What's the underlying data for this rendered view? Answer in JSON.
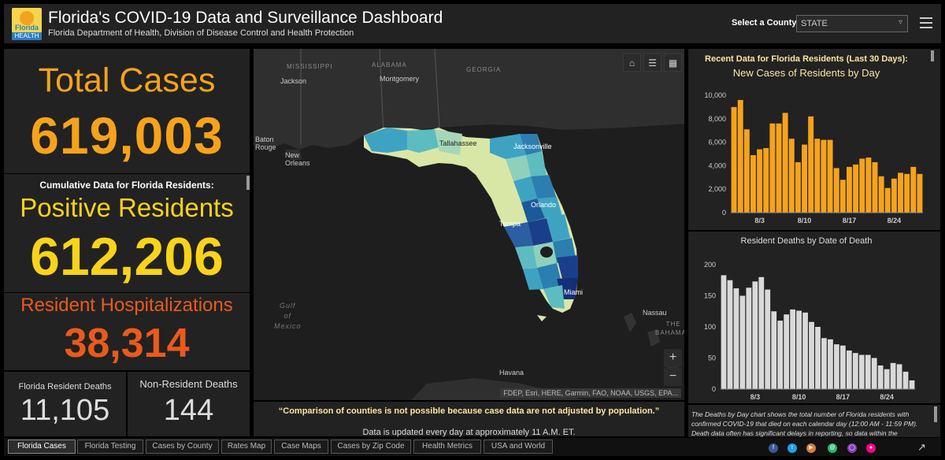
{
  "header": {
    "title": "Florida's COVID-19 Data and Surveillance Dashboard",
    "subtitle": "Florida Department of Health, Division of Disease Control and Health Protection",
    "logo_top": "Florida",
    "logo_bottom": "HEALTH",
    "county_label": "Select a County",
    "county_value": "STATE"
  },
  "stats": {
    "total_cases_label": "Total Cases",
    "total_cases_value": "619,003",
    "cumulative_label": "Cumulative Data for Florida Residents:",
    "positive_label": "Positive Residents",
    "positive_value": "612,206",
    "hosp_label": "Resident Hospitalizations",
    "hosp_value": "38,314",
    "resident_deaths_label": "Florida Resident Deaths",
    "resident_deaths_value": "11,105",
    "nonresident_deaths_label": "Non-Resident Deaths",
    "nonresident_deaths_value": "144"
  },
  "map": {
    "labels": {
      "mississippi": "MISSISSIPPI",
      "alabama": "ALABAMA",
      "georgia": "GEORGIA",
      "jackson": "Jackson",
      "montgomery": "Montgomery",
      "baton_rouge": "Baton\nRouge",
      "new_orleans": "New\nOrleans",
      "tallahassee": "Tallahassee",
      "jacksonville": "Jacksonville",
      "orlando": "Orlando",
      "tampa": "Tampa",
      "miami": "Miami",
      "gulf": "Gulf\nof\nMexico",
      "nassau": "Nassau",
      "bahamas": "THE\nBAHAMAS",
      "havana": "Havana"
    },
    "attribution": "FDEP, Esri, HERE, Garmin, FAO, NOAA, USGS, EPA...",
    "zoom_in": "+",
    "zoom_out": "−"
  },
  "notes": {
    "comparison": "“Comparison of counties is not possible because case data are not adjusted by population.”",
    "update": "Data is updated every day at approximately 11 A.M. ET.",
    "deaths_footnote": "The Deaths by Day chart shows the total number of Florida residents with confirmed COVID-19 that died on each calendar day (12:00 AM - 11:59 PM). Death data often has significant delays in reporting, so data within the"
  },
  "charts": {
    "recent_title": "Recent Data for Florida Residents (Last 30 Days):",
    "cases_title": "New Cases of Residents by Day",
    "deaths_title": "Resident Deaths by Date of Death"
  },
  "chart_data": [
    {
      "type": "bar",
      "title": "New Cases of Residents by Day",
      "x_tick_labels": [
        "8/3",
        "8/10",
        "8/17",
        "8/24"
      ],
      "y_tick_labels": [
        "0",
        "2,000",
        "4,000",
        "6,000",
        "8,000",
        "10,000"
      ],
      "ylim": [
        0,
        10000
      ],
      "color": "#f6a31b",
      "values": [
        9000,
        9600,
        7100,
        4900,
        5400,
        5500,
        7600,
        7600,
        8500,
        6300,
        4300,
        5800,
        8200,
        6300,
        6200,
        6200,
        3800,
        2800,
        3900,
        4100,
        4600,
        4700,
        4300,
        3100,
        2100,
        2900,
        3400,
        3300,
        3900,
        3300
      ]
    },
    {
      "type": "bar",
      "title": "Resident Deaths by Date of Death",
      "x_tick_labels": [
        "8/3",
        "8/10",
        "8/17",
        "8/24"
      ],
      "y_tick_labels": [
        "0",
        "50",
        "100",
        "150",
        "200"
      ],
      "ylim": [
        0,
        200
      ],
      "color": "#d9d9d9",
      "values": [
        183,
        175,
        162,
        150,
        163,
        173,
        180,
        160,
        125,
        110,
        120,
        128,
        126,
        123,
        108,
        100,
        82,
        80,
        72,
        70,
        62,
        58,
        55,
        55,
        50,
        38,
        32,
        42,
        40,
        28,
        14
      ]
    }
  ],
  "tabs": [
    "Florida Cases",
    "Florida Testing",
    "Cases by County",
    "Rates Map",
    "Case Maps",
    "Cases by Zip Code",
    "Health Metrics",
    "USA and World"
  ],
  "social_icons": [
    "facebook-icon",
    "twitter-icon",
    "youtube-icon",
    "email-icon",
    "instagram-icon",
    "flickr-icon"
  ],
  "colors": {
    "total": "#f6a31b",
    "positive": "#f9d31b",
    "hospitalizations": "#ea5a1c",
    "cases_bar": "#f6a31b",
    "deaths_bar": "#d9d9d9"
  }
}
